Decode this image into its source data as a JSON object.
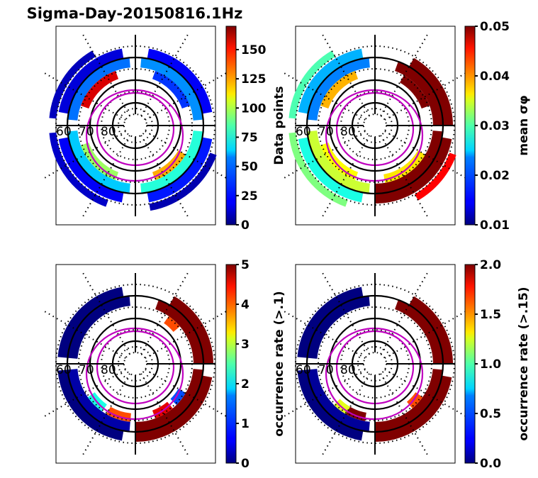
{
  "figure": {
    "title": "Sigma-Day-20150816.1Hz"
  },
  "chart_data": [
    {
      "type": "heatmap",
      "projection": "polar (magnetic latitude / MLT)",
      "panel": "top-left",
      "colorbar": {
        "label": "Data points",
        "label_math": false,
        "colormap": "jet",
        "range": [
          0,
          170
        ],
        "ticks": [
          0,
          25,
          50,
          75,
          100,
          125,
          150
        ],
        "tick_labels": [
          "0",
          "25",
          "50",
          "75",
          "100",
          "125",
          "150"
        ]
      },
      "lat_labels": [
        "60",
        "70",
        "80"
      ],
      "lat_circles": [
        80,
        70,
        60
      ],
      "dominant_value_description": "mostly low counts (dark blue to cyan); a few 130-170 bins near pre-noon, 100-130 near dusk/night",
      "sectors": [
        {
          "ring": 0,
          "start_deg": 100,
          "end_deg": 170,
          "value": 15
        },
        {
          "ring": 0,
          "start_deg": 190,
          "end_deg": 260,
          "value": 20
        },
        {
          "ring": 0,
          "start_deg": 280,
          "end_deg": 350,
          "value": 25
        },
        {
          "ring": 0,
          "start_deg": 10,
          "end_deg": 80,
          "value": 20
        },
        {
          "ring": 1,
          "start_deg": 95,
          "end_deg": 175,
          "value": 40
        },
        {
          "ring": 1,
          "start_deg": 185,
          "end_deg": 265,
          "value": 55
        },
        {
          "ring": 1,
          "start_deg": 275,
          "end_deg": 355,
          "value": 70
        },
        {
          "ring": 1,
          "start_deg": 5,
          "end_deg": 85,
          "value": 45
        },
        {
          "ring": 2,
          "start_deg": 110,
          "end_deg": 160,
          "value": 155
        },
        {
          "ring": 2,
          "start_deg": 200,
          "end_deg": 250,
          "value": 90
        },
        {
          "ring": 2,
          "start_deg": 290,
          "end_deg": 330,
          "value": 120
        },
        {
          "ring": 2,
          "start_deg": 20,
          "end_deg": 70,
          "value": 30
        },
        {
          "ring": 3,
          "start_deg": 120,
          "end_deg": 175,
          "value": 10
        },
        {
          "ring": 3,
          "start_deg": 185,
          "end_deg": 250,
          "value": 12
        },
        {
          "ring": 3,
          "start_deg": 280,
          "end_deg": 340,
          "value": 8
        }
      ]
    },
    {
      "type": "heatmap",
      "projection": "polar (magnetic latitude / MLT)",
      "panel": "top-right",
      "colorbar": {
        "label": "mean σφ",
        "label_math": true,
        "colormap": "jet",
        "range": [
          0.01,
          0.05
        ],
        "ticks": [
          0.01,
          0.02,
          0.03,
          0.04,
          0.05
        ],
        "tick_labels": [
          "0.01",
          "0.02",
          "0.03",
          "0.04",
          "0.05"
        ]
      },
      "lat_labels": [
        "60",
        "70",
        "80"
      ],
      "lat_circles": [
        80,
        70,
        60
      ],
      "dominant_value_description": "saturated (>=0.05) on dawn/morning side (right, 300-60 deg screen), 0.015-0.035 on dusk side",
      "sectors": [
        {
          "ring": 0,
          "start_deg": 100,
          "end_deg": 170,
          "value": 0.022
        },
        {
          "ring": 0,
          "start_deg": 190,
          "end_deg": 260,
          "value": 0.026
        },
        {
          "ring": 0,
          "start_deg": 270,
          "end_deg": 350,
          "value": 0.05
        },
        {
          "ring": 0,
          "start_deg": 0,
          "end_deg": 60,
          "value": 0.05
        },
        {
          "ring": 1,
          "start_deg": 95,
          "end_deg": 175,
          "value": 0.02
        },
        {
          "ring": 1,
          "start_deg": 185,
          "end_deg": 265,
          "value": 0.033
        },
        {
          "ring": 1,
          "start_deg": 270,
          "end_deg": 355,
          "value": 0.05
        },
        {
          "ring": 1,
          "start_deg": 0,
          "end_deg": 70,
          "value": 0.05
        },
        {
          "ring": 2,
          "start_deg": 110,
          "end_deg": 160,
          "value": 0.038
        },
        {
          "ring": 2,
          "start_deg": 200,
          "end_deg": 250,
          "value": 0.035
        },
        {
          "ring": 2,
          "start_deg": 280,
          "end_deg": 330,
          "value": 0.036
        },
        {
          "ring": 2,
          "start_deg": 20,
          "end_deg": 60,
          "value": 0.05
        },
        {
          "ring": 3,
          "start_deg": 120,
          "end_deg": 175,
          "value": 0.028
        },
        {
          "ring": 3,
          "start_deg": 185,
          "end_deg": 250,
          "value": 0.03
        },
        {
          "ring": 3,
          "start_deg": 300,
          "end_deg": 340,
          "value": 0.045
        }
      ]
    },
    {
      "type": "heatmap",
      "projection": "polar (magnetic latitude / MLT)",
      "panel": "bottom-left",
      "colorbar": {
        "label": "occurrence rate (>.1)",
        "label_math": false,
        "colormap": "jet",
        "range": [
          0,
          5
        ],
        "ticks": [
          0,
          1,
          2,
          3,
          4,
          5
        ],
        "tick_labels": [
          "0",
          "1",
          "2",
          "3",
          "4",
          "5"
        ]
      },
      "lat_labels": [
        "60",
        "70",
        "80"
      ],
      "lat_circles": [
        80,
        70,
        60
      ],
      "dominant_value_description": "near 0 on dusk side, saturated (>=5) on dawn side; scattered 2-4.5 bins near midnight",
      "sectors": [
        {
          "ring": 0,
          "start_deg": 100,
          "end_deg": 175,
          "value": 0
        },
        {
          "ring": 0,
          "start_deg": 185,
          "end_deg": 260,
          "value": 0
        },
        {
          "ring": 0,
          "start_deg": 270,
          "end_deg": 350,
          "value": 5
        },
        {
          "ring": 0,
          "start_deg": 0,
          "end_deg": 60,
          "value": 5
        },
        {
          "ring": 1,
          "start_deg": 95,
          "end_deg": 175,
          "value": 0
        },
        {
          "ring": 1,
          "start_deg": 185,
          "end_deg": 265,
          "value": 0.2
        },
        {
          "ring": 1,
          "start_deg": 270,
          "end_deg": 355,
          "value": 5
        },
        {
          "ring": 1,
          "start_deg": 0,
          "end_deg": 70,
          "value": 5
        },
        {
          "ring": 2,
          "start_deg": 240,
          "end_deg": 265,
          "value": 4
        },
        {
          "ring": 2,
          "start_deg": 215,
          "end_deg": 235,
          "value": 2
        },
        {
          "ring": 2,
          "start_deg": 290,
          "end_deg": 310,
          "value": 4.5
        },
        {
          "ring": 2,
          "start_deg": 315,
          "end_deg": 330,
          "value": 1
        },
        {
          "ring": 2,
          "start_deg": 40,
          "end_deg": 55,
          "value": 4
        }
      ]
    },
    {
      "type": "heatmap",
      "projection": "polar (magnetic latitude / MLT)",
      "panel": "bottom-right",
      "colorbar": {
        "label": "occurrence rate (>.15)",
        "label_math": false,
        "colormap": "jet",
        "range": [
          0.0,
          2.0
        ],
        "ticks": [
          0.0,
          0.5,
          1.0,
          1.5,
          2.0
        ],
        "tick_labels": [
          "0.0",
          "0.5",
          "1.0",
          "1.5",
          "2.0"
        ]
      },
      "lat_labels": [
        "60",
        "70",
        "80"
      ],
      "lat_circles": [
        80,
        70,
        60
      ],
      "dominant_value_description": "near 0 on dusk side, saturated (>=2) on dawn side; a couple of 1.2-1.6 bins near midnight",
      "sectors": [
        {
          "ring": 0,
          "start_deg": 100,
          "end_deg": 175,
          "value": 0
        },
        {
          "ring": 0,
          "start_deg": 185,
          "end_deg": 260,
          "value": 0
        },
        {
          "ring": 0,
          "start_deg": 270,
          "end_deg": 350,
          "value": 2
        },
        {
          "ring": 0,
          "start_deg": 0,
          "end_deg": 60,
          "value": 2
        },
        {
          "ring": 1,
          "start_deg": 95,
          "end_deg": 175,
          "value": 0
        },
        {
          "ring": 1,
          "start_deg": 185,
          "end_deg": 265,
          "value": 0.05
        },
        {
          "ring": 1,
          "start_deg": 270,
          "end_deg": 355,
          "value": 2
        },
        {
          "ring": 1,
          "start_deg": 0,
          "end_deg": 70,
          "value": 2
        },
        {
          "ring": 2,
          "start_deg": 225,
          "end_deg": 240,
          "value": 1.2
        },
        {
          "ring": 2,
          "start_deg": 310,
          "end_deg": 325,
          "value": 1.6
        },
        {
          "ring": 2,
          "start_deg": 240,
          "end_deg": 260,
          "value": 2
        }
      ]
    }
  ]
}
